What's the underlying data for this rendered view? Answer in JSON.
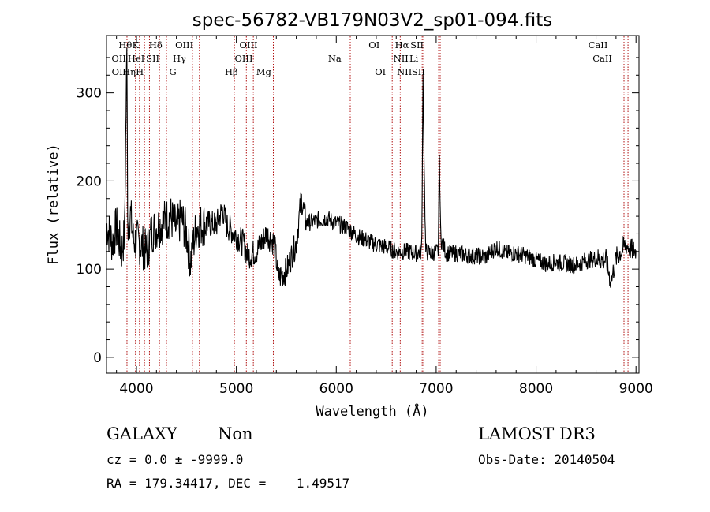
{
  "chart_data": {
    "type": "line",
    "title": "spec-56782-VB179N03V2_sp01-094.fits",
    "xlabel": "Wavelength (Å)",
    "ylabel": "Flux (relative)",
    "xlim": [
      3700,
      9030
    ],
    "ylim": [
      -18,
      365
    ],
    "xticks": [
      4000,
      5000,
      6000,
      7000,
      8000,
      9000
    ],
    "yticks": [
      0,
      100,
      200,
      300
    ],
    "spectrum_anchors": [
      [
        3700,
        150
      ],
      [
        3760,
        130
      ],
      [
        3800,
        148
      ],
      [
        3850,
        120
      ],
      [
        3880,
        138
      ],
      [
        3905,
        360
      ],
      [
        3912,
        150
      ],
      [
        3940,
        162
      ],
      [
        3970,
        132
      ],
      [
        4000,
        132
      ],
      [
        4050,
        128
      ],
      [
        4102,
        118
      ],
      [
        4150,
        142
      ],
      [
        4250,
        152
      ],
      [
        4340,
        160
      ],
      [
        4400,
        145
      ],
      [
        4450,
        158
      ],
      [
        4500,
        140
      ],
      [
        4540,
        110
      ],
      [
        4600,
        148
      ],
      [
        4700,
        152
      ],
      [
        4800,
        150
      ],
      [
        4862,
        168
      ],
      [
        4900,
        150
      ],
      [
        5000,
        138
      ],
      [
        5080,
        128
      ],
      [
        5110,
        115
      ],
      [
        5200,
        120
      ],
      [
        5300,
        140
      ],
      [
        5380,
        130
      ],
      [
        5420,
        90
      ],
      [
        5500,
        98
      ],
      [
        5600,
        130
      ],
      [
        5650,
        180
      ],
      [
        5700,
        152
      ],
      [
        5800,
        155
      ],
      [
        5900,
        158
      ],
      [
        6000,
        152
      ],
      [
        6100,
        148
      ],
      [
        6200,
        138
      ],
      [
        6300,
        133
      ],
      [
        6400,
        128
      ],
      [
        6500,
        125
      ],
      [
        6600,
        120
      ],
      [
        6700,
        120
      ],
      [
        6800,
        118
      ],
      [
        6855,
        120
      ],
      [
        6868,
        320
      ],
      [
        6880,
        215
      ],
      [
        6895,
        120
      ],
      [
        6950,
        118
      ],
      [
        7020,
        120
      ],
      [
        7032,
        230
      ],
      [
        7045,
        135
      ],
      [
        7100,
        118
      ],
      [
        7200,
        118
      ],
      [
        7300,
        116
      ],
      [
        7400,
        115
      ],
      [
        7500,
        114
      ],
      [
        7600,
        125
      ],
      [
        7700,
        118
      ],
      [
        7800,
        118
      ],
      [
        7900,
        115
      ],
      [
        8000,
        110
      ],
      [
        8100,
        106
      ],
      [
        8200,
        108
      ],
      [
        8300,
        106
      ],
      [
        8400,
        105
      ],
      [
        8500,
        110
      ],
      [
        8600,
        112
      ],
      [
        8700,
        110
      ],
      [
        8750,
        85
      ],
      [
        8800,
        112
      ],
      [
        8900,
        128
      ],
      [
        8950,
        122
      ],
      [
        9000,
        120
      ]
    ],
    "noise_level": 20,
    "emission_lines": [
      {
        "label": "OII",
        "wavelength": 3727,
        "row": 2
      },
      {
        "label": "OII",
        "wavelength": 3729,
        "row": 3
      },
      {
        "label": "Hθ",
        "wavelength": 3798,
        "row": 1
      },
      {
        "label": "Hη",
        "wavelength": 3835,
        "row": 3
      },
      {
        "label": "HeI",
        "wavelength": 3889,
        "row": 2
      },
      {
        "label": "K",
        "wavelength": 3934,
        "row": 1
      },
      {
        "label": "H",
        "wavelength": 3969,
        "row": 3
      },
      {
        "label": "Hδ",
        "wavelength": 4102,
        "row": 1
      },
      {
        "label": "SII",
        "wavelength": 4072,
        "row": 2
      },
      {
        "label": "G",
        "wavelength": 4304,
        "row": 3
      },
      {
        "label": "OIII",
        "wavelength": 4364,
        "row": 1
      },
      {
        "label": "Hγ",
        "wavelength": 4340,
        "row": 2
      },
      {
        "label": "Hβ",
        "wavelength": 4861,
        "row": 3
      },
      {
        "label": "OIII",
        "wavelength": 4959,
        "row": 2
      },
      {
        "label": "OIII",
        "wavelength": 5007,
        "row": 1
      },
      {
        "label": "Mg",
        "wavelength": 5175,
        "row": 3
      },
      {
        "label": "Na",
        "wavelength": 5894,
        "row": 2
      },
      {
        "label": "OI",
        "wavelength": 6300,
        "row": 1
      },
      {
        "label": "OI",
        "wavelength": 6363,
        "row": 3
      },
      {
        "label": "NII",
        "wavelength": 6548,
        "row": 2
      },
      {
        "label": "Hα",
        "wavelength": 6563,
        "row": 1
      },
      {
        "label": "NII",
        "wavelength": 6583,
        "row": 3
      },
      {
        "label": "SII",
        "wavelength": 6717,
        "row": 1
      },
      {
        "label": "Li",
        "wavelength": 6708,
        "row": 2
      },
      {
        "label": "SII",
        "wavelength": 6731,
        "row": 3
      },
      {
        "label": "CaII",
        "wavelength": 8498,
        "row": 1
      },
      {
        "label": "CaII",
        "wavelength": 8542,
        "row": 2
      }
    ],
    "marker_lines_angstrom": [
      3905,
      3990,
      4030,
      4080,
      4130,
      4230,
      4300,
      4560,
      4630,
      4980,
      5100,
      5170,
      5370,
      6140,
      6560,
      6640,
      6860,
      6875,
      7025,
      7040,
      8880,
      8920
    ]
  },
  "info": {
    "object_class": "GALAXY",
    "subclass": "Non",
    "survey": "LAMOST DR3",
    "cz": "cz = 0.0 ± -9999.0",
    "obs_date": "Obs-Date: 20140504",
    "coords": "RA = 179.34417, DEC =    1.49517"
  },
  "colors": {
    "spectrum": "#000000",
    "line_marker": "#b01010",
    "axes": "#000000"
  }
}
